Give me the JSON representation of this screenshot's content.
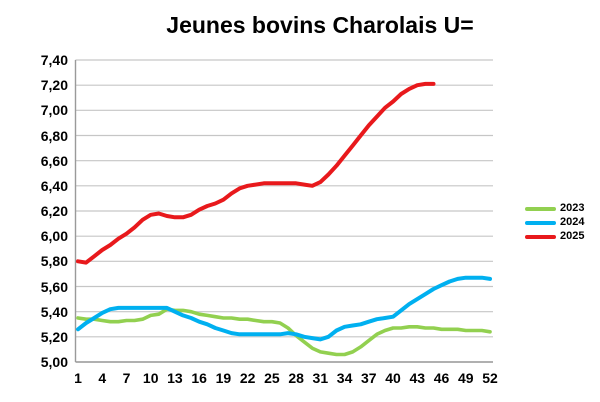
{
  "chart_data": {
    "type": "line",
    "title": "Jeunes bovins Charolais U=",
    "xlabel": "",
    "ylabel": "",
    "x_unit": "week",
    "xlim": [
      1,
      52
    ],
    "ylim": [
      5.0,
      7.4
    ],
    "y_step": 0.2,
    "grid": true,
    "decimal_separator": ",",
    "legend_position": "right",
    "y_tick_labels": [
      "7,40",
      "7,20",
      "7,00",
      "6,80",
      "6,60",
      "6,40",
      "6,20",
      "6,00",
      "5,80",
      "5,60",
      "5,40",
      "5,20",
      "5,00"
    ],
    "x_tick_labels": [
      "1",
      "4",
      "7",
      "10",
      "13",
      "16",
      "19",
      "22",
      "25",
      "28",
      "31",
      "34",
      "37",
      "40",
      "43",
      "46",
      "49",
      "52"
    ],
    "colors": {
      "grid": "#c6c6c6",
      "axis": "#9a9a9a",
      "series_2023": "#92d050",
      "series_2024": "#00b0f0",
      "series_2025": "#e8191c"
    },
    "series": [
      {
        "name": "2023",
        "color": "#92d050",
        "start_week": 1,
        "values": [
          5.35,
          5.34,
          5.34,
          5.33,
          5.32,
          5.32,
          5.33,
          5.33,
          5.34,
          5.37,
          5.38,
          5.42,
          5.41,
          5.41,
          5.4,
          5.38,
          5.37,
          5.36,
          5.35,
          5.35,
          5.34,
          5.34,
          5.33,
          5.32,
          5.32,
          5.31,
          5.27,
          5.21,
          5.16,
          5.11,
          5.08,
          5.07,
          5.06,
          5.06,
          5.08,
          5.12,
          5.17,
          5.22,
          5.25,
          5.27,
          5.27,
          5.28,
          5.28,
          5.27,
          5.27,
          5.26,
          5.26,
          5.26,
          5.25,
          5.25,
          5.25,
          5.24
        ]
      },
      {
        "name": "2024",
        "color": "#00b0f0",
        "start_week": 1,
        "values": [
          5.26,
          5.31,
          5.35,
          5.39,
          5.42,
          5.43,
          5.43,
          5.43,
          5.43,
          5.43,
          5.43,
          5.43,
          5.4,
          5.37,
          5.35,
          5.32,
          5.3,
          5.27,
          5.25,
          5.23,
          5.22,
          5.22,
          5.22,
          5.22,
          5.22,
          5.22,
          5.23,
          5.22,
          5.2,
          5.19,
          5.18,
          5.2,
          5.25,
          5.28,
          5.29,
          5.3,
          5.32,
          5.34,
          5.35,
          5.36,
          5.41,
          5.46,
          5.5,
          5.54,
          5.58,
          5.61,
          5.64,
          5.66,
          5.67,
          5.67,
          5.67,
          5.66
        ]
      },
      {
        "name": "2025",
        "color": "#e8191c",
        "start_week": 1,
        "values": [
          5.8,
          5.79,
          5.84,
          5.89,
          5.93,
          5.98,
          6.02,
          6.07,
          6.13,
          6.17,
          6.18,
          6.16,
          6.15,
          6.15,
          6.17,
          6.21,
          6.24,
          6.26,
          6.29,
          6.34,
          6.38,
          6.4,
          6.41,
          6.42,
          6.42,
          6.42,
          6.42,
          6.42,
          6.41,
          6.4,
          6.43,
          6.49,
          6.56,
          6.64,
          6.72,
          6.8,
          6.88,
          6.95,
          7.02,
          7.07,
          7.13,
          7.17,
          7.2,
          7.21,
          7.21
        ]
      }
    ]
  }
}
